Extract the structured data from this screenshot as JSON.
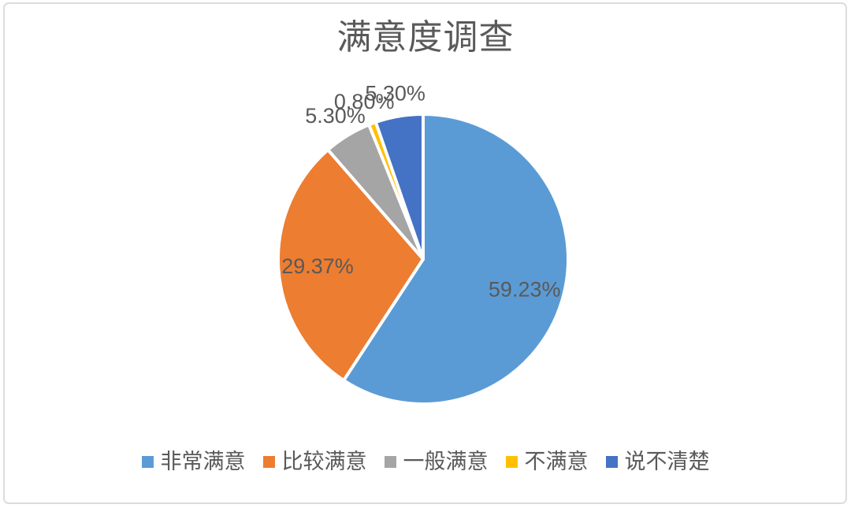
{
  "page": {
    "background": "#ffffff",
    "border_color": "#dcdcdc"
  },
  "chart_data": {
    "type": "pie",
    "title": "满意度调查",
    "categories": [
      "非常满意",
      "比较满意",
      "一般满意",
      "不满意",
      "说不清楚"
    ],
    "values": [
      59.23,
      29.37,
      5.3,
      0.8,
      5.3
    ],
    "data_labels": [
      "59.23%",
      "29.37%",
      "5.30%",
      "0.80%",
      "5.30%"
    ],
    "label_placement": [
      "inside",
      "inside",
      "outside",
      "outside",
      "outside"
    ],
    "colors": [
      "#5B9BD5",
      "#ED7D31",
      "#A5A5A5",
      "#FFC000",
      "#4472C4"
    ],
    "slice_border_color": "#ffffff",
    "start_angle_deg": 0,
    "direction": "clockwise",
    "legend_position": "bottom",
    "title_color": "#595959",
    "label_text_color": "#595959"
  }
}
